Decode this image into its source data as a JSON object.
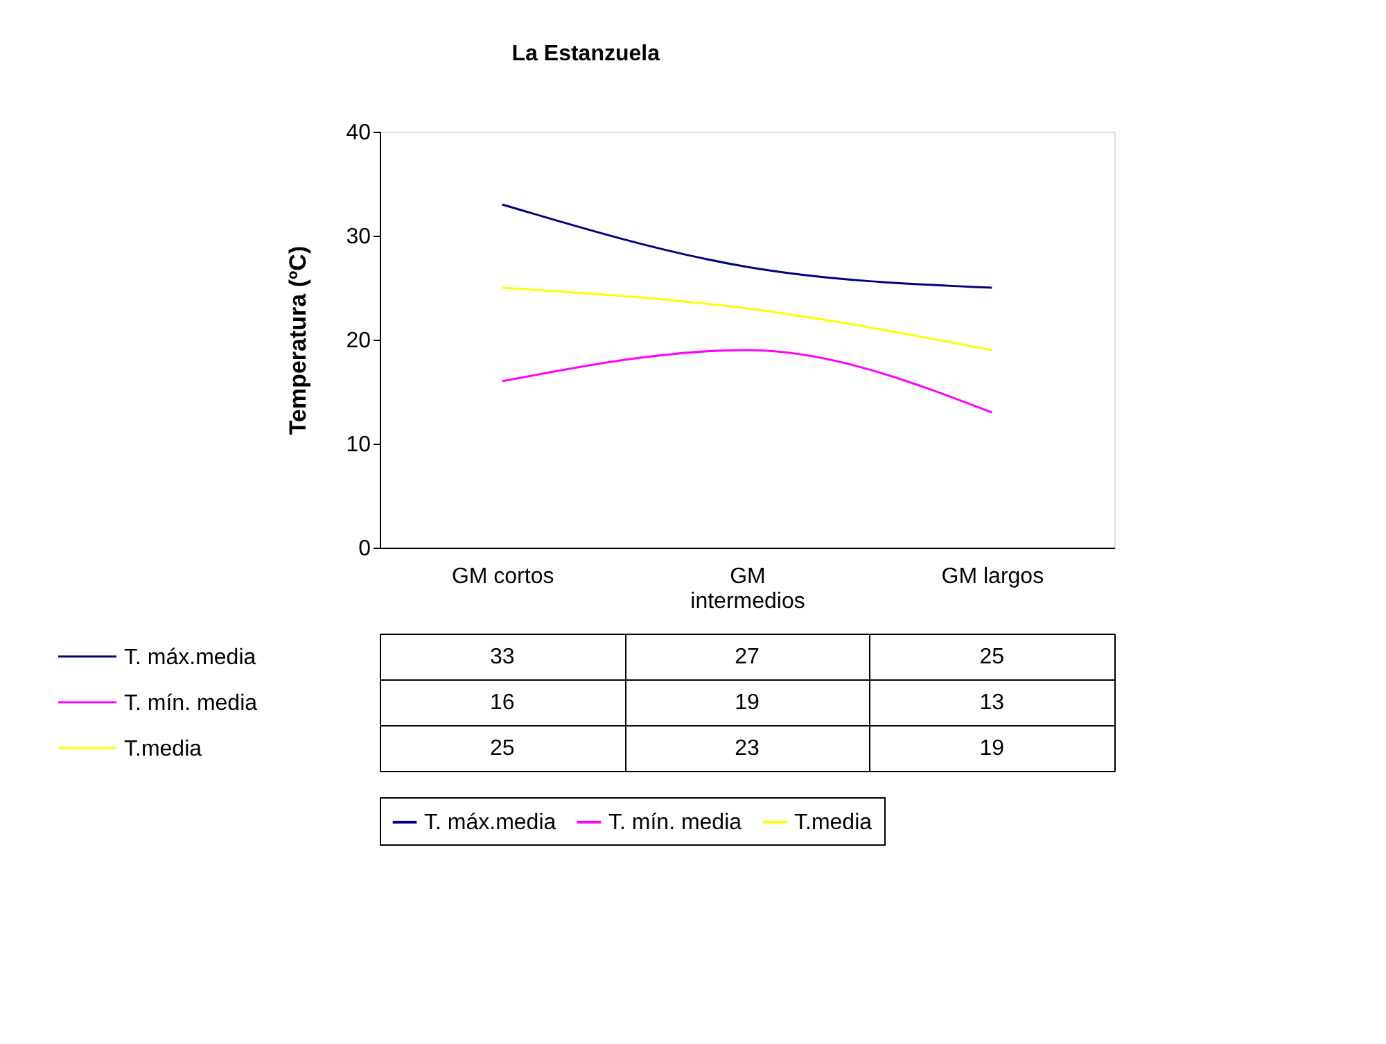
{
  "chart_data": {
    "type": "line",
    "title": "La Estanzuela",
    "ylabel": "Temperatura (ºC)",
    "categories": [
      "GM cortos",
      "GM intermedios",
      "GM largos"
    ],
    "series": [
      {
        "name": "T. máx.media",
        "color": "#000080",
        "values": [
          33,
          27,
          25
        ]
      },
      {
        "name": "T. mín. media",
        "color": "#ff00ff",
        "values": [
          16,
          19,
          13
        ]
      },
      {
        "name": "T.media",
        "color": "#ffff00",
        "values": [
          25,
          23,
          19
        ]
      }
    ],
    "ylim": [
      0,
      40
    ],
    "yticks": [
      0,
      10,
      20,
      30,
      40
    ],
    "grid": false,
    "legend": "bottom",
    "data_labels": true,
    "line_style": "solid"
  }
}
